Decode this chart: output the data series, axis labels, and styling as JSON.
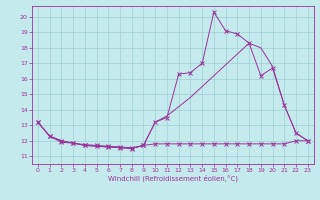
{
  "background_color": "#c5eaee",
  "line_color": "#993399",
  "grid_color": "#9ecfd4",
  "xlabel": "Windchill (Refroidissement éolien,°C)",
  "xlim": [
    -0.5,
    23.5
  ],
  "ylim": [
    10.5,
    20.7
  ],
  "yticks": [
    11,
    12,
    13,
    14,
    15,
    16,
    17,
    18,
    19,
    20
  ],
  "xticks": [
    0,
    1,
    2,
    3,
    4,
    5,
    6,
    7,
    8,
    9,
    10,
    11,
    12,
    13,
    14,
    15,
    16,
    17,
    18,
    19,
    20,
    21,
    22,
    23
  ],
  "s1_x": [
    0,
    1,
    2,
    3,
    4,
    5,
    6,
    7,
    8,
    9,
    10,
    11,
    12,
    13,
    14,
    15,
    16,
    17,
    18,
    19,
    20,
    21,
    22,
    23
  ],
  "s1_y": [
    13.2,
    12.3,
    12.0,
    11.85,
    11.7,
    11.65,
    11.6,
    11.55,
    11.5,
    11.7,
    13.2,
    13.6,
    14.2,
    14.8,
    15.5,
    16.2,
    16.9,
    17.6,
    18.3,
    18.0,
    16.8,
    14.3,
    12.5,
    12.0
  ],
  "s2_x": [
    0,
    1,
    2,
    3,
    4,
    5,
    6,
    7,
    8,
    9,
    10,
    11,
    12,
    13,
    14,
    15,
    16,
    17,
    18,
    19,
    20,
    21,
    22,
    23
  ],
  "s2_y": [
    13.2,
    12.3,
    12.0,
    11.85,
    11.7,
    11.65,
    11.6,
    11.55,
    11.5,
    11.7,
    13.2,
    13.5,
    16.3,
    16.4,
    17.0,
    20.3,
    19.1,
    18.9,
    18.3,
    16.2,
    16.7,
    14.3,
    12.5,
    12.0
  ],
  "s3_x": [
    0,
    1,
    2,
    3,
    4,
    5,
    6,
    7,
    8,
    9,
    10,
    11,
    12,
    13,
    14,
    15,
    16,
    17,
    18,
    19,
    20,
    21,
    22,
    23
  ],
  "s3_y": [
    13.2,
    12.3,
    11.9,
    11.85,
    11.75,
    11.7,
    11.65,
    11.6,
    11.55,
    11.7,
    11.8,
    11.8,
    11.8,
    11.8,
    11.8,
    11.8,
    11.8,
    11.8,
    11.8,
    11.8,
    11.8,
    11.8,
    12.0,
    12.0
  ]
}
